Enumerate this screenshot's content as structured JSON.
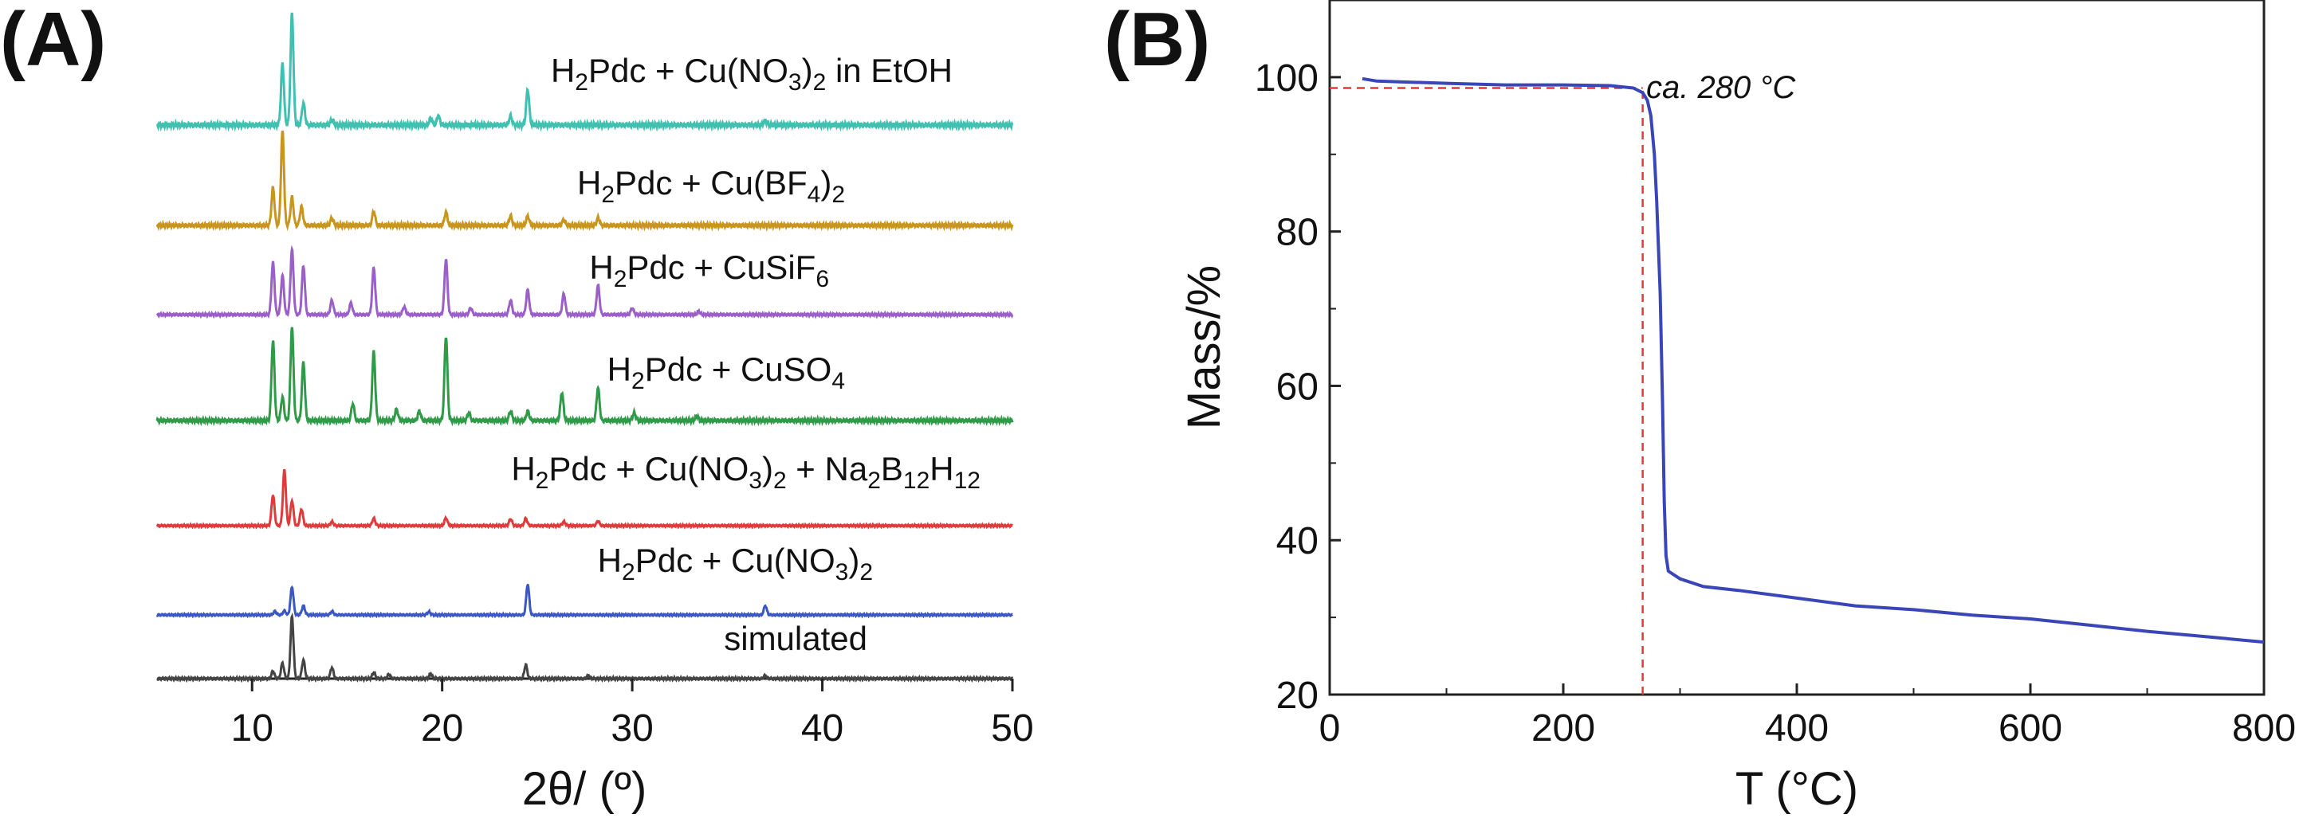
{
  "panels": {
    "a_label": "(A)",
    "b_label": "(B)"
  },
  "chart_data": [
    {
      "type": "line",
      "panel": "(A)",
      "title": "",
      "xlabel": "2θ/ (º)",
      "ylabel": "",
      "xlim": [
        5,
        50
      ],
      "xticks": [
        10,
        20,
        30,
        40,
        50
      ],
      "yticks": "none",
      "stacked": true,
      "grid": false,
      "series": [
        {
          "name": "simulated",
          "color": "#444444",
          "peaks": [
            [
              11.1,
              0.12
            ],
            [
              11.6,
              0.25
            ],
            [
              12.1,
              1.0
            ],
            [
              12.7,
              0.3
            ],
            [
              14.2,
              0.18
            ],
            [
              16.4,
              0.1
            ],
            [
              17.2,
              0.07
            ],
            [
              19.4,
              0.08
            ],
            [
              24.4,
              0.22
            ],
            [
              27.7,
              0.05
            ],
            [
              37.0,
              0.05
            ]
          ]
        },
        {
          "name": "H2Pdc + Cu(NO3)2",
          "color": "#3a57c4",
          "peaks": [
            [
              11.2,
              0.07
            ],
            [
              11.7,
              0.08
            ],
            [
              12.1,
              0.55
            ],
            [
              12.7,
              0.18
            ],
            [
              14.2,
              0.07
            ],
            [
              19.3,
              0.06
            ],
            [
              24.5,
              0.6
            ],
            [
              37.0,
              0.18
            ]
          ]
        },
        {
          "name": "H2Pdc + Cu(NO3)2 + Na2B12H12",
          "color": "#e03a3a",
          "peaks": [
            [
              11.1,
              0.55
            ],
            [
              11.7,
              1.0
            ],
            [
              12.1,
              0.45
            ],
            [
              12.6,
              0.3
            ],
            [
              14.2,
              0.07
            ],
            [
              16.4,
              0.13
            ],
            [
              20.2,
              0.14
            ],
            [
              23.6,
              0.12
            ],
            [
              24.4,
              0.13
            ],
            [
              26.4,
              0.07
            ],
            [
              28.2,
              0.08
            ]
          ]
        },
        {
          "name": "H2Pdc + CuSO4",
          "color": "#2f9a47",
          "peaks": [
            [
              11.1,
              0.85
            ],
            [
              11.6,
              0.25
            ],
            [
              12.1,
              1.0
            ],
            [
              12.7,
              0.62
            ],
            [
              15.3,
              0.18
            ],
            [
              16.4,
              0.73
            ],
            [
              17.6,
              0.12
            ],
            [
              18.8,
              0.1
            ],
            [
              20.2,
              0.9
            ],
            [
              21.4,
              0.08
            ],
            [
              23.6,
              0.1
            ],
            [
              24.5,
              0.1
            ],
            [
              26.3,
              0.3
            ],
            [
              28.2,
              0.35
            ],
            [
              30.1,
              0.08
            ],
            [
              33.4,
              0.05
            ]
          ]
        },
        {
          "name": "H2Pdc + CuSiF6",
          "color": "#9a5fc8",
          "peaks": [
            [
              11.1,
              0.8
            ],
            [
              11.6,
              0.6
            ],
            [
              12.1,
              1.0
            ],
            [
              12.7,
              0.75
            ],
            [
              14.2,
              0.22
            ],
            [
              15.2,
              0.18
            ],
            [
              16.4,
              0.72
            ],
            [
              18.0,
              0.12
            ],
            [
              20.2,
              0.85
            ],
            [
              21.5,
              0.1
            ],
            [
              23.6,
              0.22
            ],
            [
              24.5,
              0.38
            ],
            [
              26.4,
              0.32
            ],
            [
              28.2,
              0.45
            ],
            [
              30.0,
              0.1
            ],
            [
              33.5,
              0.05
            ]
          ]
        },
        {
          "name": "H2Pdc + Cu(BF4)2",
          "color": "#c8961e",
          "peaks": [
            [
              11.1,
              0.4
            ],
            [
              11.6,
              1.0
            ],
            [
              12.1,
              0.3
            ],
            [
              12.6,
              0.2
            ],
            [
              14.2,
              0.08
            ],
            [
              16.4,
              0.15
            ],
            [
              20.2,
              0.14
            ],
            [
              23.6,
              0.1
            ],
            [
              24.5,
              0.1
            ],
            [
              26.4,
              0.06
            ],
            [
              28.2,
              0.08
            ]
          ]
        },
        {
          "name": "H2Pdc + Cu(NO3)2 in EtOH",
          "color": "#3fc0b0",
          "peaks": [
            [
              11.6,
              0.55
            ],
            [
              12.1,
              1.0
            ],
            [
              12.7,
              0.2
            ],
            [
              14.2,
              0.05
            ],
            [
              19.4,
              0.06
            ],
            [
              19.8,
              0.08
            ],
            [
              23.6,
              0.08
            ],
            [
              24.5,
              0.32
            ],
            [
              37.0,
              0.04
            ]
          ]
        }
      ]
    },
    {
      "type": "line",
      "panel": "(B)",
      "title": "",
      "xlabel": "T (°C)",
      "ylabel": "Mass/%",
      "xlim": [
        0,
        800
      ],
      "ylim": [
        20,
        110
      ],
      "xticks": [
        0,
        200,
        400,
        600,
        800
      ],
      "yticks": [
        20,
        40,
        60,
        80,
        100
      ],
      "grid": false,
      "series": [
        {
          "name": "",
          "color": "#3a46b8",
          "x": [
            28,
            40,
            60,
            100,
            150,
            200,
            240,
            260,
            268,
            272,
            275,
            278,
            280,
            283,
            285,
            286.5,
            288,
            290,
            300,
            320,
            350,
            400,
            450,
            500,
            550,
            600,
            650,
            700,
            750,
            800
          ],
          "y": [
            99.8,
            99.5,
            99.4,
            99.2,
            99.0,
            99.0,
            98.9,
            98.6,
            98.0,
            97.0,
            95.0,
            90.0,
            84.0,
            72.0,
            58.0,
            45.0,
            38.0,
            36.0,
            35.0,
            34.0,
            33.5,
            32.5,
            31.5,
            31.0,
            30.3,
            29.8,
            29.0,
            28.2,
            27.5,
            26.8
          ]
        }
      ],
      "annotations": [
        {
          "text": "ca. 280 °C",
          "x": 280,
          "y": 100
        }
      ],
      "reference_lines": {
        "color": "#e03a3a",
        "vertical_x": 268,
        "horizontal_y": 98.6
      }
    }
  ]
}
